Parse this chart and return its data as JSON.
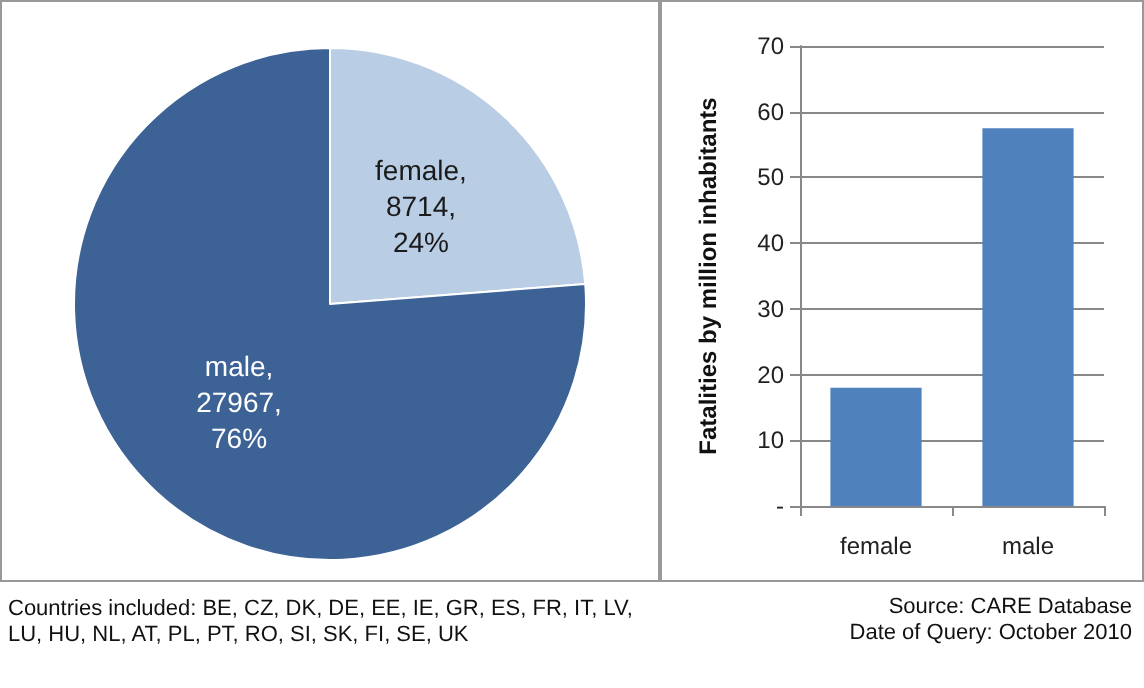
{
  "chart_data": [
    {
      "type": "pie",
      "categories": [
        "female",
        "male"
      ],
      "values": [
        8714,
        27967
      ],
      "colors": [
        "#b9cde5",
        "#3d6296"
      ],
      "value_labels": [
        ", 8714, 24%",
        ", 27967, 76%"
      ],
      "annotations": [
        "Countries included: BE, CZ, DK, DE, EE, IE, GR, ES, FR, IT, LV, LU, HU, NL, AT, PL, PT, RO, SI, SK, FI, SE, UK"
      ]
    },
    {
      "type": "bar",
      "categories": [
        "female",
        "male"
      ],
      "values": [
        18,
        57.5
      ],
      "color": "#4f81bd",
      "ylabel": "Fatalities by million inhabitants",
      "ylim": [
        0,
        70
      ],
      "yticks": [
        {
          "value": 0,
          "label": "-"
        },
        10,
        20,
        30,
        40,
        50,
        60,
        70
      ],
      "grid": "y",
      "annotations": [
        "Source: CARE Database",
        "Date of Query: October 2010"
      ]
    }
  ]
}
